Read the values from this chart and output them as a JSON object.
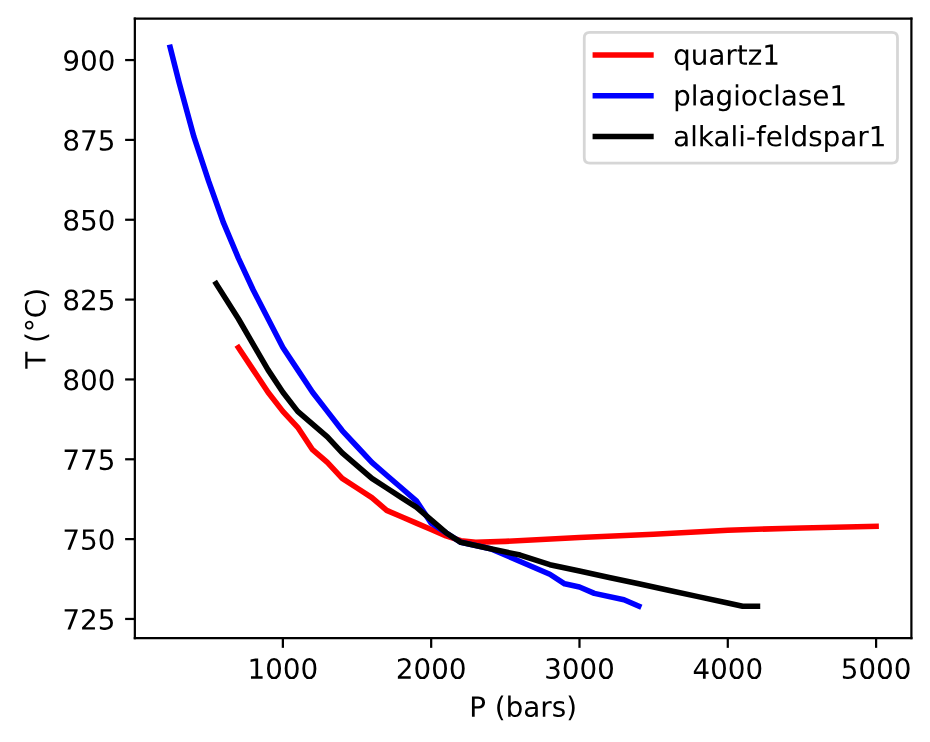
{
  "chart_data": {
    "type": "line",
    "xlabel": "P (bars)",
    "ylabel": "T (°C)",
    "xlim": [
      2,
      5238
    ],
    "ylim": [
      719,
      913
    ],
    "xticks": [
      1000,
      2000,
      3000,
      4000,
      5000
    ],
    "yticks": [
      725,
      750,
      775,
      800,
      825,
      850,
      875,
      900
    ],
    "legend": "top right",
    "grid": false,
    "series": [
      {
        "name": "quartz1",
        "color": "#ff0000",
        "x": [
          700,
          800,
          900,
          1000,
          1100,
          1200,
          1300,
          1400,
          1500,
          1600,
          1700,
          1800,
          1900,
          2000,
          2100,
          2200,
          2300,
          2500,
          3000,
          3500,
          4000,
          4500,
          5000
        ],
        "values": [
          810,
          803,
          796,
          790,
          785,
          778,
          774,
          769,
          766,
          763,
          759,
          757,
          755,
          753,
          751,
          749.5,
          749,
          749.3,
          750.5,
          751.5,
          752.8,
          753.5,
          754
        ]
      },
      {
        "name": "plagioclase1",
        "color": "#0000ff",
        "x": [
          240,
          300,
          400,
          500,
          600,
          700,
          800,
          900,
          1000,
          1100,
          1200,
          1300,
          1400,
          1500,
          1600,
          1700,
          1800,
          1900,
          2000,
          2100,
          2200,
          2400,
          2600,
          2800,
          2900,
          3000,
          3100,
          3300,
          3400
        ],
        "values": [
          904,
          893,
          876,
          862,
          849,
          838,
          828,
          819,
          810,
          803,
          796,
          790,
          784,
          779,
          774,
          770,
          766,
          762,
          755,
          752,
          749,
          747,
          743,
          739,
          736,
          735,
          733,
          731,
          729
        ]
      },
      {
        "name": "alkali-feldspar1",
        "color": "#000000",
        "x": [
          550,
          700,
          800,
          900,
          1000,
          1100,
          1200,
          1300,
          1400,
          1500,
          1600,
          1700,
          1800,
          1900,
          2000,
          2100,
          2200,
          2400,
          2600,
          2800,
          3000,
          3200,
          3400,
          3600,
          3800,
          4000,
          4100,
          4200
        ],
        "values": [
          830,
          819,
          811,
          803,
          796,
          790,
          786,
          782,
          777,
          773,
          769,
          766,
          763,
          760,
          756,
          752,
          749,
          747,
          745,
          742,
          740,
          738,
          736,
          734,
          732,
          730,
          729,
          729
        ]
      }
    ]
  }
}
